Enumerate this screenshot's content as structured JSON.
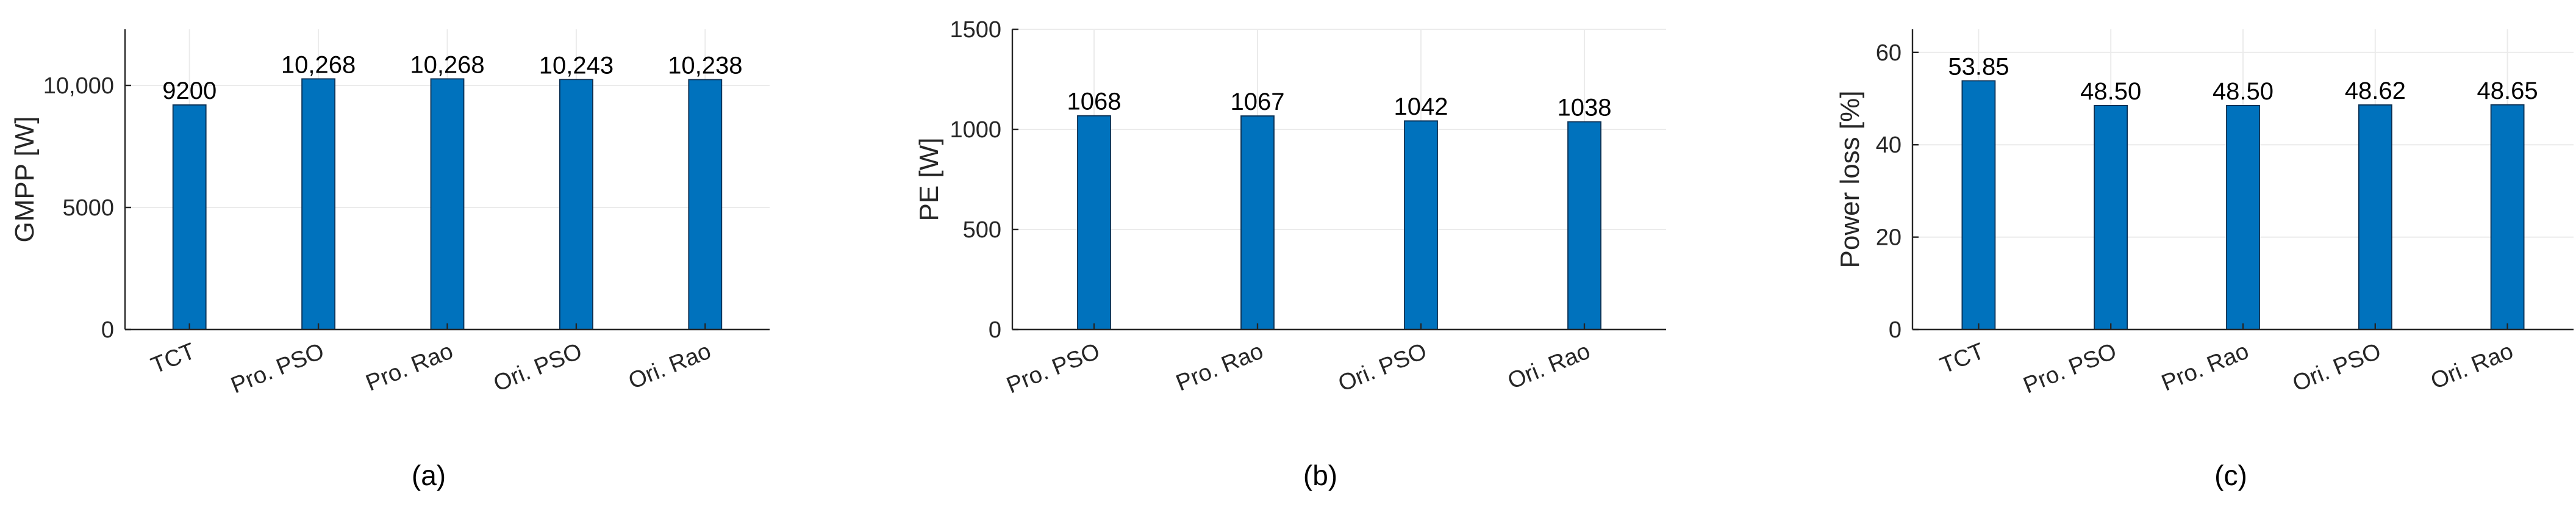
{
  "colors": {
    "bar": "#0072BD"
  },
  "chart_data": [
    {
      "type": "bar",
      "panel_label": "(a)",
      "ylabel": "GMPP [W]",
      "ylim": [
        0,
        12300
      ],
      "yticks": [
        0,
        5000,
        10000
      ],
      "ytick_labels": [
        "0",
        "5000",
        "10,000"
      ],
      "grid": true,
      "categories": [
        "TCT",
        "Pro. PSO",
        "Pro. Rao",
        "Ori. PSO",
        "Ori. Rao"
      ],
      "values": [
        9200,
        10268,
        10268,
        10243,
        10238
      ],
      "data_labels": [
        "9200",
        "10,268",
        "10,268",
        "10,243",
        "10,238"
      ]
    },
    {
      "type": "bar",
      "panel_label": "(b)",
      "ylabel": "PE [W]",
      "ylim": [
        0,
        1500
      ],
      "yticks": [
        0,
        500,
        1000,
        1500
      ],
      "ytick_labels": [
        "0",
        "500",
        "1000",
        "1500"
      ],
      "grid": true,
      "categories": [
        "Pro. PSO",
        "Pro. Rao",
        "Ori. PSO",
        "Ori. Rao"
      ],
      "values": [
        1068,
        1067,
        1042,
        1038
      ],
      "data_labels": [
        "1068",
        "1067",
        "1042",
        "1038"
      ]
    },
    {
      "type": "bar",
      "panel_label": "(c)",
      "ylabel": "Power loss [%]",
      "ylim": [
        0,
        65
      ],
      "yticks": [
        0,
        20,
        40,
        60
      ],
      "ytick_labels": [
        "0",
        "20",
        "40",
        "60"
      ],
      "grid": true,
      "categories": [
        "TCT",
        "Pro. PSO",
        "Pro. Rao",
        "Ori. PSO",
        "Ori. Rao"
      ],
      "values": [
        53.85,
        48.5,
        48.5,
        48.62,
        48.65
      ],
      "data_labels": [
        "53.85",
        "48.50",
        "48.50",
        "48.62",
        "48.65"
      ]
    }
  ]
}
